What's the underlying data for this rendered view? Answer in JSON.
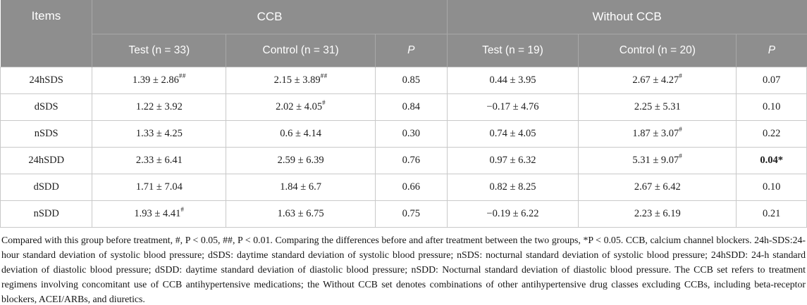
{
  "colors": {
    "header_bg": "#8e8e8e",
    "header_divider": "#a8a8a8",
    "header_text": "#ffffff",
    "body_border": "#c9c9c9",
    "body_text": "#1d1d1d"
  },
  "table": {
    "items_header": "Items",
    "groups": [
      {
        "label": "CCB",
        "columns": [
          "Test (n = 33)",
          "Control (n = 31)",
          "P"
        ]
      },
      {
        "label": "Without CCB",
        "columns": [
          "Test (n = 19)",
          "Control (n = 20)",
          "P"
        ]
      }
    ],
    "rows": [
      {
        "item": "24hSDS",
        "cells": [
          {
            "text": "1.39 ± 2.86",
            "sup": "##"
          },
          {
            "text": "2.15 ± 3.89",
            "sup": "##"
          },
          {
            "text": "0.85"
          },
          {
            "text": "0.44 ± 3.95"
          },
          {
            "text": "2.67 ± 4.27",
            "sup": "#"
          },
          {
            "text": "0.07"
          }
        ]
      },
      {
        "item": "dSDS",
        "cells": [
          {
            "text": "1.22 ± 3.92"
          },
          {
            "text": "2.02 ± 4.05",
            "sup": "#"
          },
          {
            "text": "0.84"
          },
          {
            "text": "−0.17 ± 4.76"
          },
          {
            "text": "2.25 ± 5.31"
          },
          {
            "text": "0.10"
          }
        ]
      },
      {
        "item": "nSDS",
        "cells": [
          {
            "text": "1.33 ± 4.25"
          },
          {
            "text": "0.6 ± 4.14"
          },
          {
            "text": "0.30"
          },
          {
            "text": "0.74 ± 4.05"
          },
          {
            "text": "1.87 ± 3.07",
            "sup": "#"
          },
          {
            "text": "0.22"
          }
        ]
      },
      {
        "item": "24hSDD",
        "cells": [
          {
            "text": "2.33 ± 6.41"
          },
          {
            "text": "2.59 ± 6.39"
          },
          {
            "text": "0.76"
          },
          {
            "text": "0.97 ± 6.32"
          },
          {
            "text": "5.31 ± 9.07",
            "sup": "#"
          },
          {
            "text": "0.04*",
            "bold": true
          }
        ]
      },
      {
        "item": "dSDD",
        "cells": [
          {
            "text": "1.71 ± 7.04"
          },
          {
            "text": "1.84 ± 6.7"
          },
          {
            "text": "0.66"
          },
          {
            "text": "0.82 ± 8.25"
          },
          {
            "text": "2.67 ± 6.42"
          },
          {
            "text": "0.10"
          }
        ]
      },
      {
        "item": "nSDD",
        "cells": [
          {
            "text": "1.93 ± 4.41",
            "sup": "#"
          },
          {
            "text": "1.63 ± 6.75"
          },
          {
            "text": "0.75"
          },
          {
            "text": "−0.19 ± 6.22"
          },
          {
            "text": "2.23 ± 6.19"
          },
          {
            "text": "0.21"
          }
        ]
      }
    ]
  },
  "footnote": "Compared with this group before treatment, #, P < 0.05, ##, P < 0.01. Comparing the differences before and after treatment between the two groups, *P < 0.05. CCB, calcium channel blockers. 24h-SDS:24-hour standard deviation of systolic blood pressure; dSDS: daytime standard deviation of systolic blood pressure; nSDS: nocturnal standard deviation of systolic blood pressure; 24hSDD: 24-h standard deviation of diastolic blood pressure; dSDD: daytime standard deviation of diastolic blood pressure; nSDD: Nocturnal standard deviation of diastolic blood pressure. The CCB set refers to treatment regimens involving concomitant use of CCB antihypertensive medications; the Without CCB set denotes combinations of other antihypertensive drug classes excluding CCBs, including beta-receptor blockers, ACEI/ARBs, and diuretics."
}
